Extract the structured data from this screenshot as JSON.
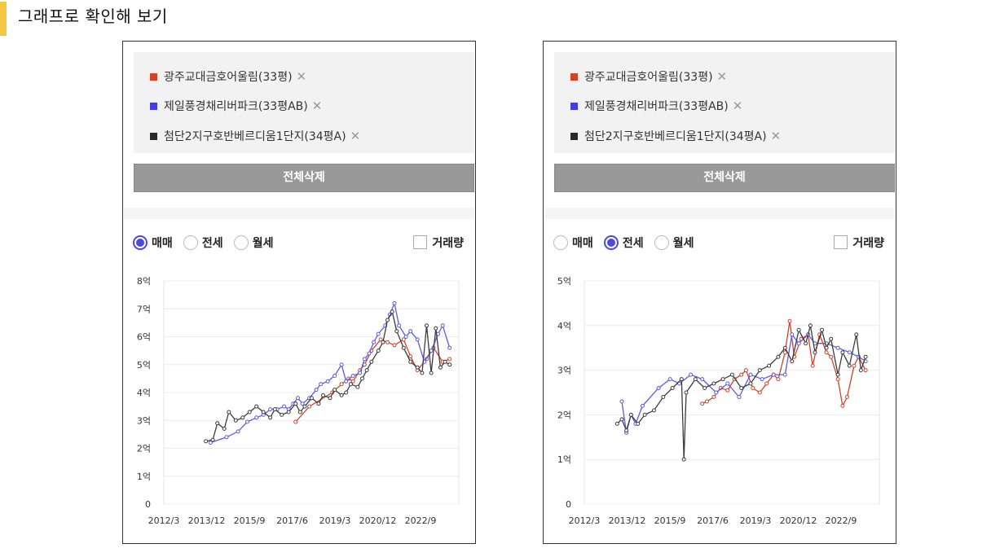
{
  "page": {
    "title": "그래프로 확인해 보기"
  },
  "colors": {
    "accent": "#f6c744",
    "series_red": "#d2412b",
    "series_blue": "#5a5ae6",
    "series_black": "#3c3c3c",
    "radio_selected": "#4a4ae0",
    "button_bg": "#999999"
  },
  "compare_list": {
    "items": [
      {
        "name": "광주교대금호어울림(33평)",
        "color": "#d2412b",
        "remove": "✕"
      },
      {
        "name": "제일풍경채리버파크(33평AB)",
        "color": "#4040e0",
        "remove": "✕"
      },
      {
        "name": "첨단2지구호반베르디움1단지(34평A)",
        "color": "#2a2a2a",
        "remove": "✕"
      }
    ],
    "delete_all_label": "전체삭제"
  },
  "panels": [
    {
      "radio_options": [
        {
          "label": "매매",
          "checked": true
        },
        {
          "label": "전세",
          "checked": false
        },
        {
          "label": "월세",
          "checked": false
        }
      ],
      "volume_label": "거래량",
      "volume_checked": false
    },
    {
      "radio_options": [
        {
          "label": "매매",
          "checked": false
        },
        {
          "label": "전세",
          "checked": true
        },
        {
          "label": "월세",
          "checked": false
        }
      ],
      "volume_label": "거래량",
      "volume_checked": false
    }
  ],
  "chart_data": [
    {
      "type": "line",
      "title": "",
      "ylabel": "",
      "xlabel": "",
      "ylim": [
        0,
        8
      ],
      "y_ticks": [
        "0",
        "1억",
        "2억",
        "3억",
        "4억",
        "5억",
        "6억",
        "7억",
        "8억"
      ],
      "x_ticks": [
        "2012/3",
        "2013/12",
        "2015/9",
        "2017/6",
        "2019/3",
        "2020/12",
        "2022/9"
      ],
      "xlim": [
        2012.17,
        2025.0
      ],
      "grid": true,
      "series": [
        {
          "color": "#d2412b",
          "points": [
            [
              2017.9,
              2.95
            ],
            [
              2018.5,
              3.5
            ],
            [
              2019.5,
              4.0
            ],
            [
              2019.9,
              4.3
            ],
            [
              2020.2,
              4.5
            ],
            [
              2020.4,
              4.4
            ],
            [
              2020.7,
              4.8
            ],
            [
              2020.9,
              5.0
            ],
            [
              2021.2,
              5.5
            ],
            [
              2021.6,
              5.9
            ],
            [
              2021.9,
              5.8
            ],
            [
              2022.2,
              5.7
            ],
            [
              2022.6,
              5.9
            ],
            [
              2022.9,
              5.3
            ],
            [
              2023.2,
              4.8
            ],
            [
              2023.6,
              5.2
            ],
            [
              2023.9,
              5.6
            ],
            [
              2024.3,
              5.1
            ],
            [
              2024.6,
              5.2
            ]
          ]
        },
        {
          "color": "#5a5ae6",
          "points": [
            [
              2014.2,
              2.2
            ],
            [
              2014.9,
              2.4
            ],
            [
              2015.4,
              2.6
            ],
            [
              2015.8,
              2.95
            ],
            [
              2016.2,
              3.1
            ],
            [
              2016.5,
              3.2
            ],
            [
              2016.8,
              3.4
            ],
            [
              2017.1,
              3.4
            ],
            [
              2017.4,
              3.5
            ],
            [
              2017.6,
              3.4
            ],
            [
              2017.8,
              3.6
            ],
            [
              2018.0,
              3.8
            ],
            [
              2018.2,
              3.6
            ],
            [
              2018.5,
              3.8
            ],
            [
              2018.8,
              4.1
            ],
            [
              2019.0,
              4.3
            ],
            [
              2019.3,
              4.4
            ],
            [
              2019.6,
              4.6
            ],
            [
              2019.9,
              5.0
            ],
            [
              2020.1,
              4.4
            ],
            [
              2020.4,
              4.6
            ],
            [
              2020.7,
              4.7
            ],
            [
              2020.9,
              5.2
            ],
            [
              2021.1,
              5.4
            ],
            [
              2021.3,
              5.8
            ],
            [
              2021.5,
              6.1
            ],
            [
              2021.8,
              6.4
            ],
            [
              2022.0,
              6.8
            ],
            [
              2022.2,
              7.2
            ],
            [
              2022.4,
              6.4
            ],
            [
              2022.7,
              6.0
            ],
            [
              2022.9,
              6.2
            ],
            [
              2023.2,
              5.9
            ],
            [
              2023.5,
              5.1
            ],
            [
              2023.8,
              5.5
            ],
            [
              2024.1,
              6.1
            ],
            [
              2024.3,
              6.4
            ],
            [
              2024.6,
              5.6
            ]
          ]
        },
        {
          "color": "#3c3c3c",
          "points": [
            [
              2014.0,
              2.25
            ],
            [
              2014.3,
              2.3
            ],
            [
              2014.5,
              2.9
            ],
            [
              2014.8,
              2.7
            ],
            [
              2015.0,
              3.3
            ],
            [
              2015.3,
              3.0
            ],
            [
              2015.6,
              3.1
            ],
            [
              2015.9,
              3.3
            ],
            [
              2016.2,
              3.5
            ],
            [
              2016.5,
              3.3
            ],
            [
              2016.8,
              3.1
            ],
            [
              2017.0,
              3.4
            ],
            [
              2017.3,
              3.2
            ],
            [
              2017.6,
              3.3
            ],
            [
              2017.9,
              3.6
            ],
            [
              2018.1,
              3.3
            ],
            [
              2018.3,
              3.5
            ],
            [
              2018.6,
              3.8
            ],
            [
              2018.9,
              3.6
            ],
            [
              2019.1,
              3.9
            ],
            [
              2019.4,
              3.8
            ],
            [
              2019.6,
              4.1
            ],
            [
              2019.9,
              3.9
            ],
            [
              2020.1,
              4.0
            ],
            [
              2020.3,
              4.3
            ],
            [
              2020.6,
              4.2
            ],
            [
              2020.8,
              4.5
            ],
            [
              2021.0,
              4.8
            ],
            [
              2021.2,
              5.1
            ],
            [
              2021.5,
              5.5
            ],
            [
              2021.7,
              5.8
            ],
            [
              2021.9,
              6.6
            ],
            [
              2022.1,
              6.9
            ],
            [
              2022.3,
              6.2
            ],
            [
              2022.6,
              5.6
            ],
            [
              2022.9,
              5.1
            ],
            [
              2023.2,
              4.9
            ],
            [
              2023.4,
              4.7
            ],
            [
              2023.6,
              6.4
            ],
            [
              2023.8,
              4.7
            ],
            [
              2024.0,
              6.3
            ],
            [
              2024.2,
              4.9
            ],
            [
              2024.4,
              5.1
            ],
            [
              2024.6,
              5.0
            ]
          ]
        }
      ]
    },
    {
      "type": "line",
      "title": "",
      "ylabel": "",
      "xlabel": "",
      "ylim": [
        0,
        5
      ],
      "y_ticks": [
        "0",
        "1억",
        "2억",
        "3억",
        "4억",
        "5억"
      ],
      "x_ticks": [
        "2012/3",
        "2013/12",
        "2015/9",
        "2017/6",
        "2019/3",
        "2020/12",
        "2022/9"
      ],
      "xlim": [
        2012.17,
        2025.0
      ],
      "grid": true,
      "series": [
        {
          "color": "#d2412b",
          "points": [
            [
              2017.3,
              2.25
            ],
            [
              2017.5,
              2.3
            ],
            [
              2017.8,
              2.4
            ],
            [
              2018.1,
              2.6
            ],
            [
              2018.4,
              2.55
            ],
            [
              2018.7,
              2.8
            ],
            [
              2019.0,
              2.9
            ],
            [
              2019.2,
              3.0
            ],
            [
              2019.5,
              2.6
            ],
            [
              2019.8,
              2.5
            ],
            [
              2020.1,
              2.7
            ],
            [
              2020.4,
              2.9
            ],
            [
              2020.6,
              2.8
            ],
            [
              2020.9,
              3.4
            ],
            [
              2021.1,
              4.1
            ],
            [
              2021.3,
              3.3
            ],
            [
              2021.6,
              3.7
            ],
            [
              2021.9,
              3.8
            ],
            [
              2022.1,
              3.1
            ],
            [
              2022.4,
              3.8
            ],
            [
              2022.7,
              3.4
            ],
            [
              2022.9,
              3.3
            ],
            [
              2023.2,
              2.8
            ],
            [
              2023.4,
              2.2
            ],
            [
              2023.6,
              2.4
            ],
            [
              2023.9,
              3.1
            ],
            [
              2024.1,
              3.3
            ],
            [
              2024.4,
              3.0
            ]
          ]
        },
        {
          "color": "#5a5ae6",
          "points": [
            [
              2013.8,
              2.3
            ],
            [
              2014.0,
              1.6
            ],
            [
              2014.2,
              2.0
            ],
            [
              2014.4,
              1.8
            ],
            [
              2014.7,
              2.2
            ],
            [
              2015.4,
              2.6
            ],
            [
              2015.9,
              2.8
            ],
            [
              2016.3,
              2.7
            ],
            [
              2016.8,
              2.9
            ],
            [
              2017.3,
              2.8
            ],
            [
              2017.9,
              2.5
            ],
            [
              2018.4,
              2.7
            ],
            [
              2018.9,
              2.4
            ],
            [
              2019.4,
              2.9
            ],
            [
              2019.9,
              2.8
            ],
            [
              2020.4,
              2.9
            ],
            [
              2020.9,
              2.9
            ],
            [
              2021.2,
              3.8
            ],
            [
              2021.5,
              3.6
            ],
            [
              2021.9,
              3.8
            ],
            [
              2022.2,
              3.6
            ],
            [
              2022.7,
              3.6
            ],
            [
              2023.2,
              3.5
            ],
            [
              2023.7,
              3.4
            ],
            [
              2024.1,
              3.3
            ],
            [
              2024.4,
              3.2
            ]
          ]
        },
        {
          "color": "#3c3c3c",
          "points": [
            [
              2013.6,
              1.8
            ],
            [
              2013.8,
              1.9
            ],
            [
              2014.0,
              1.65
            ],
            [
              2014.2,
              2.0
            ],
            [
              2014.5,
              1.8
            ],
            [
              2014.8,
              2.0
            ],
            [
              2015.2,
              2.1
            ],
            [
              2015.6,
              2.4
            ],
            [
              2016.0,
              2.6
            ],
            [
              2016.4,
              2.8
            ],
            [
              2016.5,
              1.0
            ],
            [
              2016.6,
              2.5
            ],
            [
              2017.0,
              2.8
            ],
            [
              2017.4,
              2.6
            ],
            [
              2017.8,
              2.7
            ],
            [
              2018.2,
              2.8
            ],
            [
              2018.6,
              2.9
            ],
            [
              2019.0,
              2.6
            ],
            [
              2019.4,
              2.7
            ],
            [
              2019.8,
              3.0
            ],
            [
              2020.2,
              3.1
            ],
            [
              2020.6,
              3.3
            ],
            [
              2020.9,
              3.5
            ],
            [
              2021.2,
              3.2
            ],
            [
              2021.5,
              3.9
            ],
            [
              2021.8,
              3.6
            ],
            [
              2022.0,
              4.0
            ],
            [
              2022.2,
              3.4
            ],
            [
              2022.5,
              3.9
            ],
            [
              2022.7,
              3.5
            ],
            [
              2022.9,
              3.7
            ],
            [
              2023.2,
              2.9
            ],
            [
              2023.4,
              3.4
            ],
            [
              2023.7,
              3.1
            ],
            [
              2024.0,
              3.8
            ],
            [
              2024.2,
              3.0
            ],
            [
              2024.4,
              3.3
            ]
          ]
        }
      ]
    }
  ]
}
